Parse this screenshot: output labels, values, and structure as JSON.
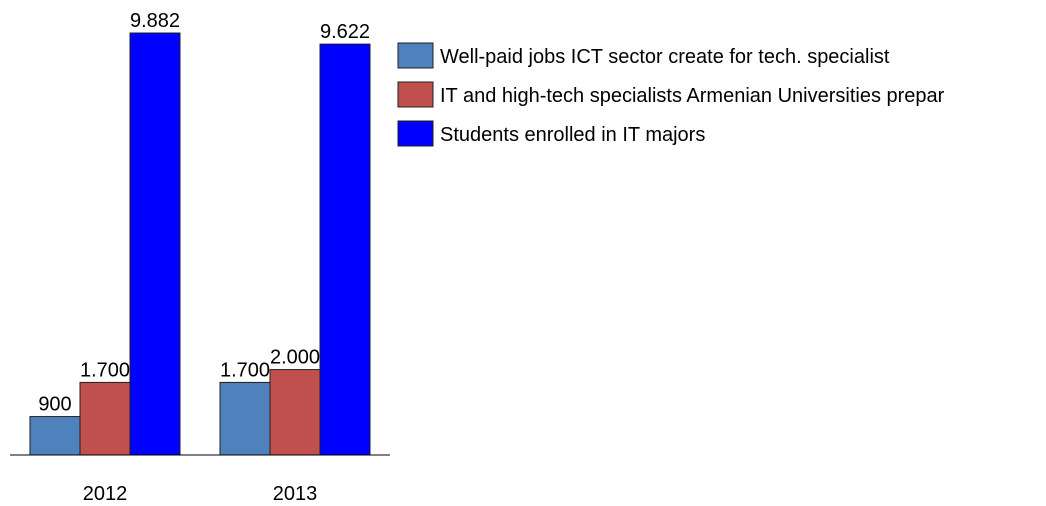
{
  "chart_data": {
    "type": "bar",
    "categories": [
      "2012",
      "2013"
    ],
    "series": [
      {
        "name": "Well-paid jobs ICT sector create for tech. specialist",
        "color": "#4f81bd",
        "values": [
          900,
          1700
        ],
        "value_labels": [
          "900",
          "1.700"
        ]
      },
      {
        "name": "IT and high-tech specialists Armenian Universities prepar",
        "color": "#c0504d",
        "values": [
          1700,
          2000
        ],
        "value_labels": [
          "1.700",
          "2.000"
        ]
      },
      {
        "name": "Students enrolled in IT majors",
        "color": "#0000ff",
        "values": [
          9882,
          9622
        ],
        "value_labels": [
          "9.882",
          "9.622"
        ]
      }
    ]
  }
}
